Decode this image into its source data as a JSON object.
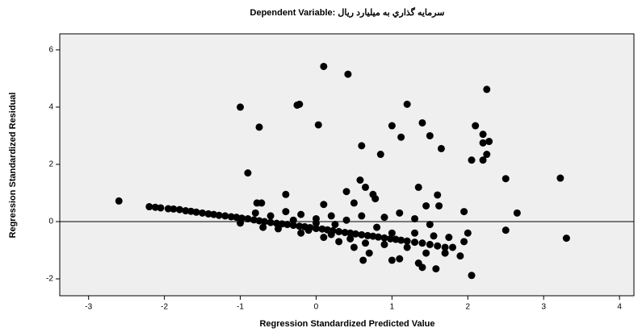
{
  "chart_data": {
    "type": "scatter",
    "title": "Dependent Variable: سرمايه گذاري به ميليارد ريال",
    "x_label": "Regression Standardized Predicted Value",
    "y_label": "Regression Standardized Residual",
    "color": "#000000",
    "hline": 0,
    "xlim": [
      -3.38,
      4.19
    ],
    "ylim": [
      -2.59,
      6.56
    ],
    "xticks": [
      -3,
      -2,
      -1,
      0,
      1,
      2,
      3,
      4
    ],
    "yticks": [
      -2,
      0,
      2,
      4,
      6
    ],
    "x": [
      -2.6,
      -1.0,
      -0.22,
      -0.25,
      0.1,
      0.42,
      -0.75,
      0.03,
      1.2,
      1.0,
      1.4,
      1.12,
      1.5,
      2.1,
      2.25,
      2.2,
      2.2,
      2.28,
      2.25,
      1.65,
      0.6,
      0.85,
      2.05,
      2.2,
      2.5,
      3.22,
      -0.9,
      0.58,
      0.65,
      0.75,
      0.4,
      -0.4,
      1.35,
      1.6,
      0.78,
      0.5,
      -0.78,
      -0.72,
      0.1,
      1.45,
      1.62,
      1.95,
      2.65,
      2.5,
      3.3,
      2.05,
      1.4,
      1.58,
      1.35,
      1.0,
      0.62,
      1.9,
      1.95,
      2.0,
      -2.2,
      -2.12,
      -2.05,
      -1.95,
      -1.88,
      -1.8,
      -1.72,
      -1.65,
      -1.58,
      -1.5,
      -1.42,
      -1.35,
      -1.28,
      -1.2,
      -1.12,
      -1.05,
      -0.98,
      -0.9,
      -0.82,
      -0.75,
      -0.68,
      -0.6,
      -0.52,
      -0.45,
      -0.38,
      -0.3,
      -0.22,
      -0.15,
      -0.08,
      0.0,
      0.08,
      0.15,
      0.22,
      0.3,
      0.38,
      0.45,
      0.52,
      0.6,
      0.68,
      0.75,
      0.82,
      0.9,
      0.98,
      1.05,
      1.12,
      1.2,
      1.3,
      1.4,
      1.5,
      1.6,
      1.7,
      -0.8,
      -0.6,
      -0.4,
      -0.2,
      0.0,
      0.2,
      0.4,
      0.6,
      0.9,
      1.1,
      1.3,
      1.5,
      -0.5,
      -0.2,
      0.1,
      0.3,
      0.5,
      0.7,
      0.9,
      1.1,
      1.2,
      1.45,
      1.7,
      1.8,
      -0.3,
      0.0,
      0.25,
      -1.0,
      -0.7,
      0.8,
      1.0,
      1.3,
      1.55,
      1.75,
      0.45,
      0.65,
      0.2,
      -0.1
    ],
    "y": [
      0.72,
      4.0,
      4.1,
      4.07,
      5.42,
      5.15,
      3.3,
      3.38,
      4.1,
      3.35,
      3.45,
      2.95,
      3.0,
      3.35,
      4.62,
      3.05,
      2.75,
      2.8,
      2.35,
      2.55,
      2.65,
      2.35,
      2.15,
      2.15,
      1.5,
      1.52,
      1.7,
      1.45,
      1.2,
      0.95,
      1.05,
      0.95,
      1.2,
      0.93,
      0.8,
      0.65,
      0.65,
      0.65,
      0.6,
      0.55,
      0.55,
      0.35,
      0.3,
      -0.3,
      -0.58,
      -1.88,
      -1.6,
      -1.65,
      -1.45,
      -1.35,
      -1.35,
      -1.2,
      -0.7,
      -0.4,
      0.52,
      0.5,
      0.48,
      0.45,
      0.44,
      0.42,
      0.38,
      0.36,
      0.33,
      0.3,
      0.27,
      0.25,
      0.22,
      0.2,
      0.17,
      0.15,
      0.12,
      0.1,
      0.06,
      0.03,
      0.0,
      -0.03,
      -0.06,
      -0.08,
      -0.1,
      -0.13,
      -0.16,
      -0.18,
      -0.21,
      -0.24,
      -0.26,
      -0.29,
      -0.32,
      -0.35,
      -0.38,
      -0.4,
      -0.43,
      -0.46,
      -0.49,
      -0.51,
      -0.54,
      -0.57,
      -0.6,
      -0.62,
      -0.65,
      -0.68,
      -0.72,
      -0.75,
      -0.8,
      -0.85,
      -0.9,
      0.3,
      0.2,
      0.35,
      0.25,
      0.1,
      0.2,
      0.05,
      0.2,
      0.15,
      0.3,
      0.1,
      -0.1,
      -0.25,
      -0.4,
      -0.55,
      -0.7,
      -0.9,
      -1.1,
      -0.8,
      -1.3,
      -0.9,
      -1.1,
      -1.1,
      -0.9,
      0.05,
      -0.05,
      -0.1,
      -0.05,
      -0.2,
      -0.2,
      -0.4,
      -0.4,
      -0.5,
      -0.55,
      -0.6,
      -0.75,
      -0.45,
      -0.3
    ]
  }
}
